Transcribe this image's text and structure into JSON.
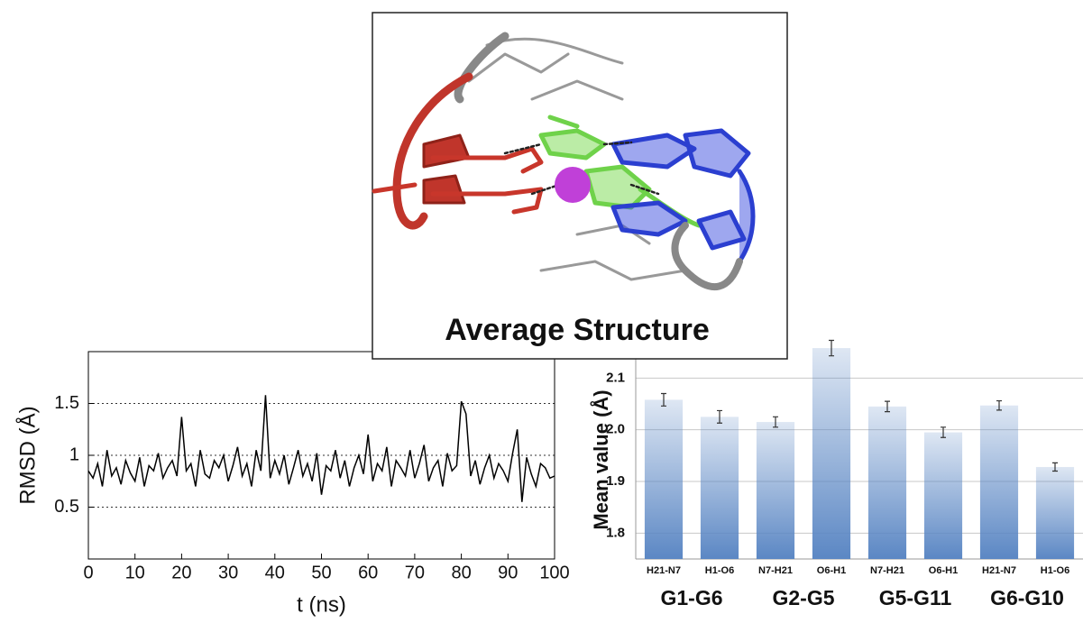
{
  "chart_data": [
    {
      "type": "line",
      "xlabel": "t (ns)",
      "ylabel": "RMSD (Å)",
      "x": [
        0,
        1,
        2,
        3,
        4,
        5,
        6,
        7,
        8,
        9,
        10,
        11,
        12,
        13,
        14,
        15,
        16,
        17,
        18,
        19,
        20,
        21,
        22,
        23,
        24,
        25,
        26,
        27,
        28,
        29,
        30,
        31,
        32,
        33,
        34,
        35,
        36,
        37,
        38,
        39,
        40,
        41,
        42,
        43,
        44,
        45,
        46,
        47,
        48,
        49,
        50,
        51,
        52,
        53,
        54,
        55,
        56,
        57,
        58,
        59,
        60,
        61,
        62,
        63,
        64,
        65,
        66,
        67,
        68,
        69,
        70,
        71,
        72,
        73,
        74,
        75,
        76,
        77,
        78,
        79,
        80,
        81,
        82,
        83,
        84,
        85,
        86,
        87,
        88,
        89,
        90,
        91,
        92,
        93,
        94,
        95,
        96,
        97,
        98,
        99,
        100
      ],
      "series": [
        {
          "color": "#000000",
          "values": [
            0.85,
            0.78,
            0.92,
            0.7,
            1.05,
            0.8,
            0.88,
            0.72,
            0.95,
            0.83,
            0.75,
            0.98,
            0.7,
            0.9,
            0.85,
            1.02,
            0.78,
            0.88,
            0.95,
            0.8,
            1.37,
            0.85,
            0.92,
            0.7,
            1.05,
            0.82,
            0.78,
            0.95,
            0.88,
            1.0,
            0.75,
            0.9,
            1.08,
            0.8,
            0.92,
            0.7,
            1.05,
            0.85,
            1.58,
            0.78,
            0.95,
            0.82,
            1.0,
            0.72,
            0.88,
            1.05,
            0.8,
            0.92,
            0.75,
            1.02,
            0.62,
            0.9,
            0.85,
            1.05,
            0.78,
            0.95,
            0.7,
            0.88,
            1.0,
            0.82,
            1.2,
            0.75,
            0.92,
            0.85,
            1.08,
            0.7,
            0.95,
            0.88,
            0.8,
            1.05,
            0.78,
            0.92,
            1.1,
            0.75,
            0.88,
            0.95,
            0.7,
            1.02,
            0.85,
            0.9,
            1.52,
            1.4,
            0.8,
            0.95,
            0.72,
            0.88,
            1.0,
            0.78,
            0.92,
            0.85,
            0.75,
            1.02,
            1.25,
            0.55,
            0.98,
            0.82,
            0.7,
            0.92,
            0.88,
            0.78,
            0.8
          ]
        }
      ],
      "xlim": [
        0,
        100
      ],
      "xticks": [
        0,
        10,
        20,
        30,
        40,
        50,
        60,
        70,
        80,
        90,
        100
      ],
      "ylim": [
        0,
        2
      ],
      "yticks": [
        0.5,
        1,
        1.5
      ],
      "grid": true
    },
    {
      "type": "bar",
      "ylabel": "Mean value (Å)",
      "categories": [
        "H21-N7",
        "H1-O6",
        "N7-H21",
        "O6-H1",
        "N7-H21",
        "O6-H1",
        "H21-N7",
        "H1-O6"
      ],
      "groups": [
        "G1-G6",
        "G2-G5",
        "G5-G11",
        "G6-G10"
      ],
      "values": [
        2.058,
        2.025,
        2.015,
        2.158,
        2.045,
        1.995,
        2.047,
        1.928
      ],
      "errors": [
        0.012,
        0.012,
        0.01,
        0.015,
        0.01,
        0.01,
        0.009,
        0.008
      ],
      "color": "#5b87c4",
      "ylim": [
        1.75,
        2.2
      ],
      "yticks": [
        1.8,
        1.9,
        {
          "value": 2,
          "label": "2.0"
        },
        2.1
      ],
      "grid": true
    }
  ],
  "structure": {
    "caption": "Average Structure"
  }
}
